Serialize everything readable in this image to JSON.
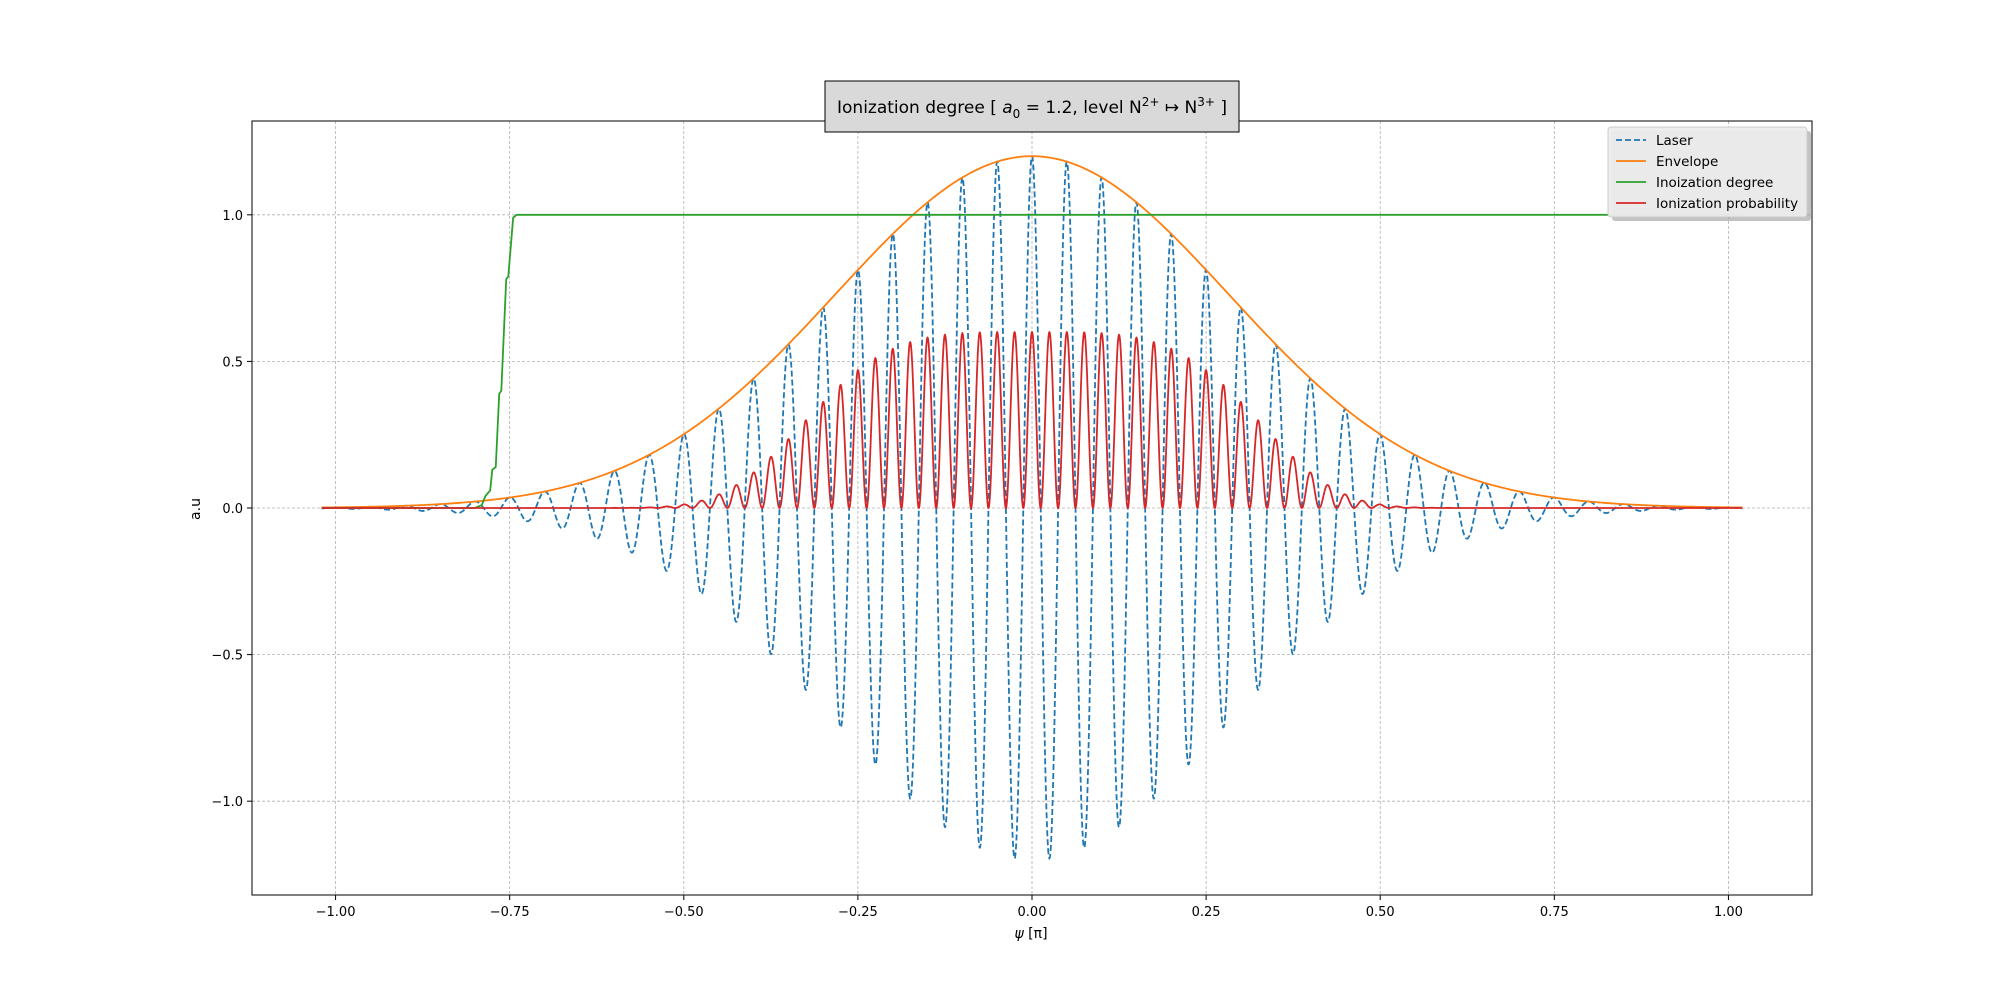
{
  "chart_data": {
    "type": "line",
    "title": {
      "prefix": "Ionization degree [ ",
      "a_symbol": "a",
      "a_subscript": "0",
      "mid": " = 1.2, level N",
      "sup1": "2+",
      "arrow": " ↦ N",
      "sup2": "3+",
      "suffix": " ]"
    },
    "xlabel": {
      "symbol": "ψ",
      "unit": "[π]"
    },
    "ylabel": "a.u",
    "xlim": [
      -1.12,
      1.12
    ],
    "ylim": [
      -1.32,
      1.32
    ],
    "x_ticks": [
      -1.0,
      -0.75,
      -0.5,
      -0.25,
      0.0,
      0.25,
      0.5,
      0.75,
      1.0
    ],
    "x_tick_labels": [
      "−1.00",
      "−0.75",
      "−0.50",
      "−0.25",
      "0.00",
      "0.25",
      "0.50",
      "0.75",
      "1.00"
    ],
    "y_ticks": [
      -1.0,
      -0.5,
      0.0,
      0.5,
      1.0
    ],
    "y_tick_labels": [
      "−1.0",
      "−0.5",
      "0.0",
      "0.5",
      "1.0"
    ],
    "grid": true,
    "legend_position": "top-right",
    "x_range": [
      -1.02,
      1.02
    ],
    "series": [
      {
        "name": "Laser",
        "color": "#1f77b4",
        "style": "dashed",
        "function": "a0 * exp(-(x/0.4)^2) * cos(2*pi*x/0.05)",
        "amplitude": 1.2,
        "period": 0.05
      },
      {
        "name": "Envelope",
        "color": "#ff7f0e",
        "style": "solid",
        "function": "a0 * exp(-(x/0.4)^2)",
        "amplitude": 1.2
      },
      {
        "name": "Inoization degree",
        "color": "#2ca02c",
        "style": "solid",
        "x": [
          -1.02,
          -0.8,
          -0.79,
          -0.785,
          -0.778,
          -0.775,
          -0.77,
          -0.765,
          -0.762,
          -0.755,
          -0.752,
          -0.745,
          -0.74,
          1.02
        ],
        "values": [
          0.0,
          0.0,
          0.01,
          0.04,
          0.06,
          0.13,
          0.14,
          0.39,
          0.4,
          0.78,
          0.79,
          0.99,
          1.0,
          1.0
        ]
      },
      {
        "name": "Ionization probability",
        "color": "#d62728",
        "style": "solid",
        "function": "0.6 * exp(-(x/0.4)^4) * cos^2(2*pi*x/0.05)",
        "amplitude": 0.6,
        "period": 0.05
      }
    ]
  }
}
